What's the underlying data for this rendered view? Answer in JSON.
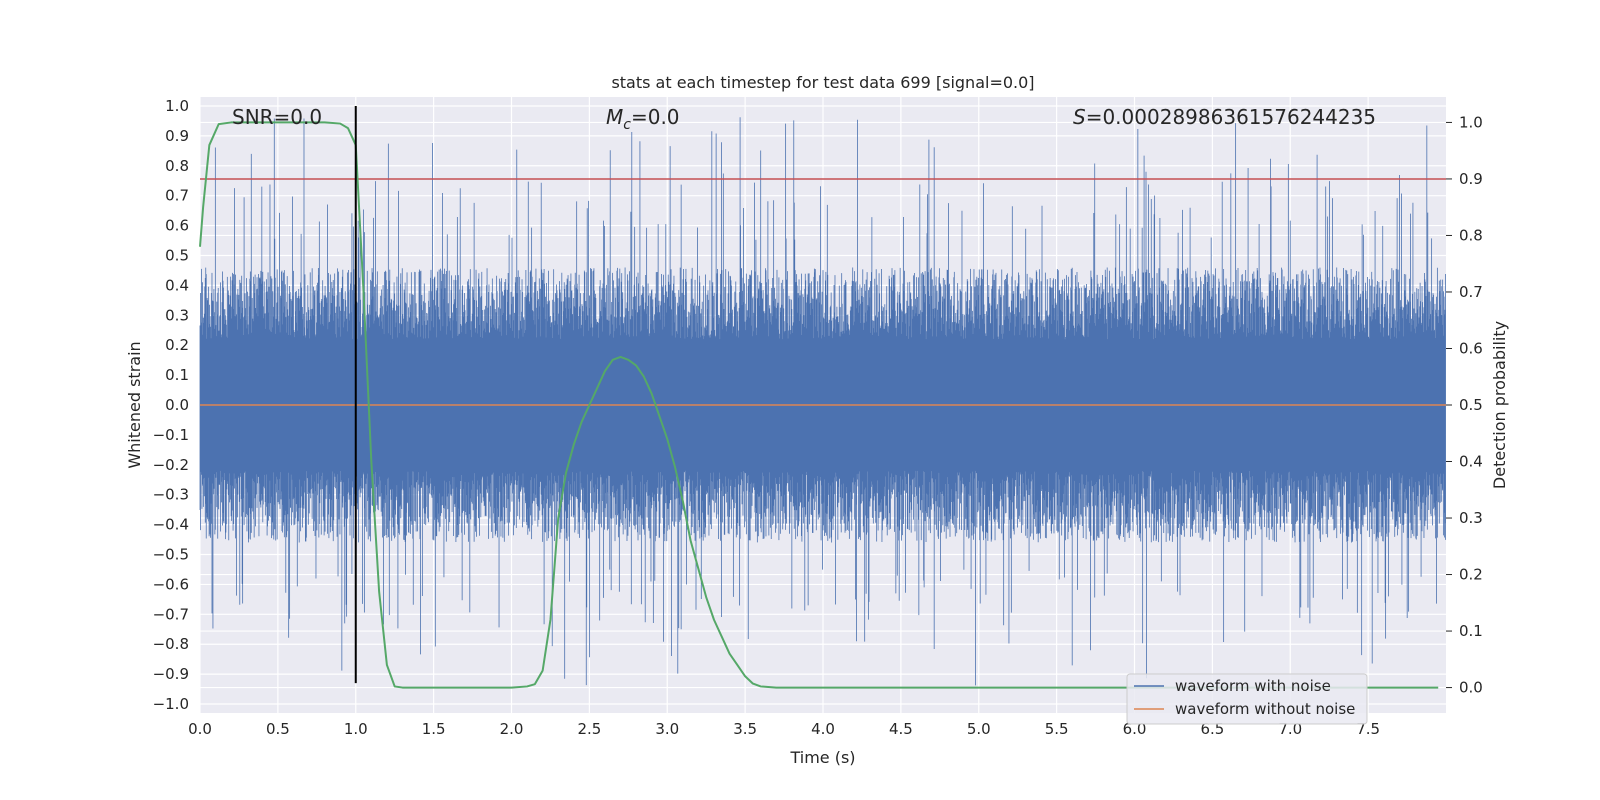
{
  "chart_data": {
    "type": "line",
    "title": "stats at each timestep for test data 699 [signal=0.0]",
    "xlabel": "Time (s)",
    "ylabel": "Whitened strain",
    "y2label": "Detection probability",
    "xlim": [
      0.0,
      8.0
    ],
    "ylim": [
      -1.03,
      1.03
    ],
    "y2lim": [
      -0.045,
      1.045
    ],
    "x_ticks": [
      0.0,
      0.5,
      1.0,
      1.5,
      2.0,
      2.5,
      3.0,
      3.5,
      4.0,
      4.5,
      5.0,
      5.5,
      6.0,
      6.5,
      7.0,
      7.5
    ],
    "x_tick_labels": [
      "0.0",
      "0.5",
      "1.0",
      "1.5",
      "2.0",
      "2.5",
      "3.0",
      "3.5",
      "4.0",
      "4.5",
      "5.0",
      "5.5",
      "6.0",
      "6.5",
      "7.0",
      "7.5"
    ],
    "y_ticks": [
      1.0,
      0.9,
      0.8,
      0.7,
      0.6,
      0.5,
      0.4,
      0.3,
      0.2,
      0.1,
      0.0,
      -0.1,
      -0.2,
      -0.3,
      -0.4,
      -0.5,
      -0.6,
      -0.7,
      -0.8,
      -0.9,
      -1.0
    ],
    "y_tick_labels": [
      "1.0",
      "0.9",
      "0.8",
      "0.7",
      "0.6",
      "0.5",
      "0.4",
      "0.3",
      "0.2",
      "0.1",
      "0.0",
      "−0.1",
      "−0.2",
      "−0.3",
      "−0.4",
      "−0.5",
      "−0.6",
      "−0.7",
      "−0.8",
      "−0.9",
      "−1.0"
    ],
    "y2_ticks": [
      1.0,
      0.9,
      0.8,
      0.7,
      0.6,
      0.5,
      0.4,
      0.3,
      0.2,
      0.1,
      0.0
    ],
    "y2_tick_labels": [
      "1.0",
      "0.9",
      "0.8",
      "0.7",
      "0.6",
      "0.5",
      "0.4",
      "0.3",
      "0.2",
      "0.1",
      "0.0"
    ],
    "annotations": {
      "snr": "SNR=0.0",
      "mc_symbol": "M",
      "mc_sub": "c",
      "mc_value": "=0.0",
      "s_symbol": "S",
      "s_value": "=0.00028986361576244235"
    },
    "series": [
      {
        "name": "waveform with noise",
        "color": "#4c72b0",
        "kind": "noise",
        "envelope_typical": 0.4,
        "envelope_peak": 1.0
      },
      {
        "name": "waveform without noise",
        "color": "#dd8452",
        "kind": "constant",
        "value": 0.0
      },
      {
        "name": "detection probability",
        "color": "#55a868",
        "axis": "right",
        "x": [
          0.0,
          0.02,
          0.06,
          0.12,
          0.2,
          0.4,
          0.6,
          0.8,
          0.9,
          0.95,
          1.0,
          1.05,
          1.1,
          1.15,
          1.2,
          1.25,
          1.3,
          1.35,
          1.4,
          1.6,
          1.8,
          2.0,
          2.1,
          2.15,
          2.2,
          2.25,
          2.3,
          2.35,
          2.4,
          2.45,
          2.5,
          2.55,
          2.6,
          2.65,
          2.7,
          2.75,
          2.8,
          2.85,
          2.9,
          2.95,
          3.0,
          3.05,
          3.1,
          3.15,
          3.2,
          3.25,
          3.3,
          3.35,
          3.4,
          3.45,
          3.5,
          3.55,
          3.6,
          3.7,
          4.0,
          5.0,
          6.0,
          7.0,
          7.95
        ],
        "y": [
          0.78,
          0.85,
          0.96,
          0.997,
          1.0,
          1.0,
          1.0,
          1.0,
          0.998,
          0.99,
          0.96,
          0.7,
          0.4,
          0.17,
          0.04,
          0.002,
          0.0,
          0.0,
          0.0,
          0.0,
          0.0,
          0.0,
          0.002,
          0.006,
          0.03,
          0.12,
          0.3,
          0.38,
          0.43,
          0.47,
          0.5,
          0.53,
          0.56,
          0.58,
          0.585,
          0.58,
          0.57,
          0.55,
          0.52,
          0.48,
          0.44,
          0.39,
          0.33,
          0.26,
          0.21,
          0.16,
          0.12,
          0.09,
          0.06,
          0.04,
          0.02,
          0.007,
          0.002,
          0.0,
          0.0,
          0.0,
          0.0,
          0.0,
          0.0
        ]
      }
    ],
    "threshold_line": {
      "value": 0.9,
      "axis": "right",
      "color": "#c44e52"
    },
    "vertical_marker": {
      "x": 1.0,
      "from": -0.93,
      "to": 1.0,
      "color": "#000000"
    },
    "legend": {
      "position": "lower-right",
      "entries": [
        "waveform with noise",
        "waveform without noise"
      ]
    }
  }
}
